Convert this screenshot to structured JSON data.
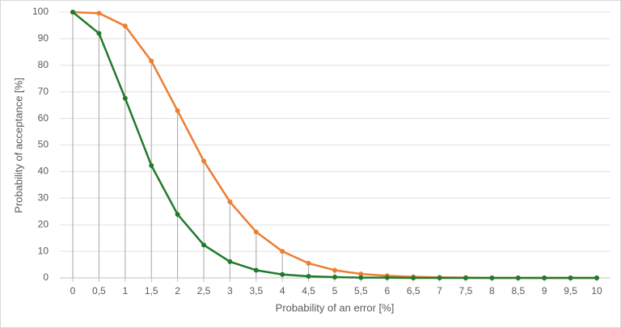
{
  "chart_data": {
    "type": "line",
    "x_label": "Probability of an error [%]",
    "y_label": "Probability of acceptance [%]",
    "x": [
      0,
      0.5,
      1,
      1.5,
      2,
      2.5,
      3,
      3.5,
      4,
      4.5,
      5,
      5.5,
      6,
      6.5,
      7,
      7.5,
      8,
      8.5,
      9,
      9.5,
      10
    ],
    "xlim": [
      0,
      10
    ],
    "xticks": [
      {
        "value": 0,
        "label": "0"
      },
      {
        "value": 0.5,
        "label": "0,5"
      },
      {
        "value": 1,
        "label": "1"
      },
      {
        "value": 1.5,
        "label": "1,5"
      },
      {
        "value": 2,
        "label": "2"
      },
      {
        "value": 2.5,
        "label": "2,5"
      },
      {
        "value": 3,
        "label": "3"
      },
      {
        "value": 3.5,
        "label": "3,5"
      },
      {
        "value": 4,
        "label": "4"
      },
      {
        "value": 4.5,
        "label": "4,5"
      },
      {
        "value": 5,
        "label": "5"
      },
      {
        "value": 5.5,
        "label": "5,5"
      },
      {
        "value": 6,
        "label": "6"
      },
      {
        "value": 6.5,
        "label": "6,5"
      },
      {
        "value": 7,
        "label": "7"
      },
      {
        "value": 7.5,
        "label": "7,5"
      },
      {
        "value": 8,
        "label": "8"
      },
      {
        "value": 8.5,
        "label": "8,5"
      },
      {
        "value": 9,
        "label": "9"
      },
      {
        "value": 9.5,
        "label": "9,5"
      },
      {
        "value": 10,
        "label": "10"
      }
    ],
    "ylim": [
      0,
      100
    ],
    "yticks": [
      0,
      10,
      20,
      30,
      40,
      50,
      60,
      70,
      80,
      90,
      100
    ],
    "grid": true,
    "drop_lines": true,
    "series": [
      {
        "color": "#ed7d31",
        "values": [
          100,
          99.6,
          94.8,
          81.6,
          62.9,
          44.0,
          28.6,
          17.3,
          10.0,
          5.5,
          2.9,
          1.5,
          0.8,
          0.4,
          0.2,
          0.1,
          0,
          0,
          0,
          0,
          0
        ]
      },
      {
        "color": "#217a2c",
        "values": [
          100,
          92.0,
          67.6,
          42.3,
          23.9,
          12.4,
          6.1,
          2.9,
          1.3,
          0.6,
          0.3,
          0.1,
          0.1,
          0,
          0,
          0,
          0,
          0,
          0,
          0,
          0
        ]
      }
    ]
  }
}
